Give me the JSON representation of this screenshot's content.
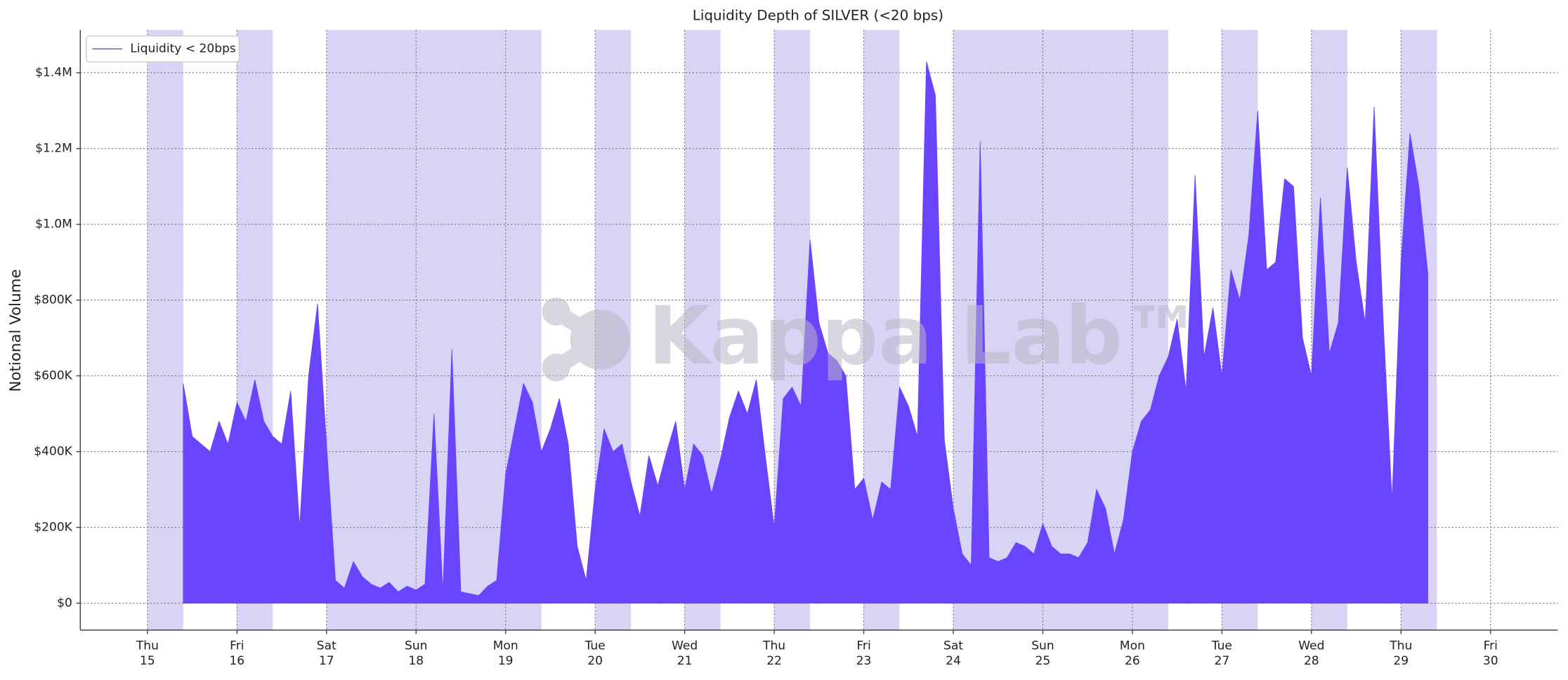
{
  "chart_data": {
    "type": "area",
    "title": "Liquidity Depth of SILVER (<20 bps)",
    "y_label": "Notional Volume",
    "watermark": "Kappa Lab™",
    "legend": "upper left",
    "grid": true,
    "xlim": [
      14.25,
      30.75
    ],
    "ylim": [
      -71000,
      1513000
    ],
    "xticks": [
      {
        "value": 15,
        "label": "Thu 15"
      },
      {
        "value": 16,
        "label": "Fri 16"
      },
      {
        "value": 17,
        "label": "Sat 17"
      },
      {
        "value": 18,
        "label": "Sun 18"
      },
      {
        "value": 19,
        "label": "Mon 19"
      },
      {
        "value": 20,
        "label": "Tue 20"
      },
      {
        "value": 21,
        "label": "Wed 21"
      },
      {
        "value": 22,
        "label": "Thu 22"
      },
      {
        "value": 23,
        "label": "Fri 23"
      },
      {
        "value": 24,
        "label": "Sat 24"
      },
      {
        "value": 25,
        "label": "Sun 25"
      },
      {
        "value": 26,
        "label": "Mon 26"
      },
      {
        "value": 27,
        "label": "Tue 27"
      },
      {
        "value": 28,
        "label": "Wed 28"
      },
      {
        "value": 29,
        "label": "Thu 29"
      },
      {
        "value": 30,
        "label": "Fri 30"
      }
    ],
    "yticks": [
      {
        "value": 0,
        "label": "$0"
      },
      {
        "value": 200000,
        "label": "$200K"
      },
      {
        "value": 400000,
        "label": "$400K"
      },
      {
        "value": 600000,
        "label": "$600K"
      },
      {
        "value": 800000,
        "label": "$800K"
      },
      {
        "value": 1000000,
        "label": "$1.0M"
      },
      {
        "value": 1200000,
        "label": "$1.2M"
      },
      {
        "value": 1400000,
        "label": "$1.4M"
      }
    ],
    "shaded_color": "#d8d4f6",
    "shaded_ranges": [
      [
        15,
        15.4
      ],
      [
        16,
        16.4
      ],
      [
        17,
        19.4
      ],
      [
        20,
        20.4
      ],
      [
        21,
        21.4
      ],
      [
        22,
        22.4
      ],
      [
        23,
        23.4
      ],
      [
        24,
        26.4
      ],
      [
        27,
        27.4
      ],
      [
        28,
        28.4
      ],
      [
        29,
        29.4
      ]
    ],
    "x": [
      15.4,
      15.5,
      15.6,
      15.7,
      15.8,
      15.9,
      16.0,
      16.1,
      16.2,
      16.3,
      16.4,
      16.5,
      16.6,
      16.7,
      16.8,
      16.9,
      17.0,
      17.1,
      17.2,
      17.3,
      17.4,
      17.5,
      17.6,
      17.7,
      17.8,
      17.9,
      18.0,
      18.1,
      18.2,
      18.3,
      18.4,
      18.5,
      18.6,
      18.7,
      18.8,
      18.9,
      19.0,
      19.1,
      19.2,
      19.3,
      19.4,
      19.5,
      19.6,
      19.7,
      19.8,
      19.9,
      20.0,
      20.1,
      20.2,
      20.3,
      20.4,
      20.5,
      20.6,
      20.7,
      20.8,
      20.9,
      21.0,
      21.1,
      21.2,
      21.3,
      21.4,
      21.5,
      21.6,
      21.7,
      21.8,
      21.9,
      22.0,
      22.1,
      22.2,
      22.3,
      22.4,
      22.5,
      22.6,
      22.7,
      22.8,
      22.9,
      23.0,
      23.1,
      23.2,
      23.3,
      23.4,
      23.5,
      23.6,
      23.7,
      23.8,
      23.9,
      24.0,
      24.1,
      24.2,
      24.3,
      24.4,
      24.5,
      24.6,
      24.7,
      24.8,
      24.9,
      25.0,
      25.1,
      25.2,
      25.3,
      25.4,
      25.5,
      25.6,
      25.7,
      25.8,
      25.9,
      26.0,
      26.1,
      26.2,
      26.3,
      26.4,
      26.5,
      26.6,
      26.7,
      26.8,
      26.9,
      27.0,
      27.1,
      27.2,
      27.3,
      27.4,
      27.5,
      27.6,
      27.7,
      27.8,
      27.9,
      28.0,
      28.1,
      28.2,
      28.3,
      28.4,
      28.5,
      28.6,
      28.7,
      28.8,
      28.9,
      29.0,
      29.1,
      29.2,
      29.3
    ],
    "series": [
      {
        "name": "Liquidity < 20bps",
        "color": "#6a45ff",
        "values": [
          580000,
          440000,
          420000,
          400000,
          480000,
          420000,
          530000,
          480000,
          590000,
          480000,
          440000,
          420000,
          560000,
          200000,
          600000,
          790000,
          420000,
          60000,
          40000,
          110000,
          70000,
          50000,
          40000,
          55000,
          30000,
          45000,
          35000,
          50000,
          500000,
          30000,
          670000,
          30000,
          25000,
          20000,
          45000,
          60000,
          340000,
          460000,
          580000,
          530000,
          400000,
          460000,
          540000,
          420000,
          150000,
          60000,
          300000,
          460000,
          400000,
          420000,
          320000,
          230000,
          390000,
          310000,
          400000,
          480000,
          300000,
          420000,
          390000,
          290000,
          380000,
          490000,
          560000,
          500000,
          590000,
          390000,
          200000,
          540000,
          570000,
          520000,
          960000,
          740000,
          660000,
          640000,
          600000,
          300000,
          330000,
          220000,
          320000,
          300000,
          570000,
          520000,
          440000,
          1430000,
          1340000,
          430000,
          250000,
          130000,
          100000,
          1220000,
          120000,
          110000,
          120000,
          160000,
          150000,
          130000,
          210000,
          150000,
          130000,
          130000,
          120000,
          160000,
          300000,
          250000,
          130000,
          220000,
          400000,
          480000,
          510000,
          600000,
          650000,
          750000,
          560000,
          1130000,
          650000,
          780000,
          600000,
          880000,
          800000,
          970000,
          1300000,
          880000,
          900000,
          1120000,
          1100000,
          700000,
          600000,
          1070000,
          660000,
          740000,
          1150000,
          900000,
          740000,
          1310000,
          750000,
          270000,
          900000,
          1240000,
          1100000,
          870000
        ]
      }
    ]
  }
}
